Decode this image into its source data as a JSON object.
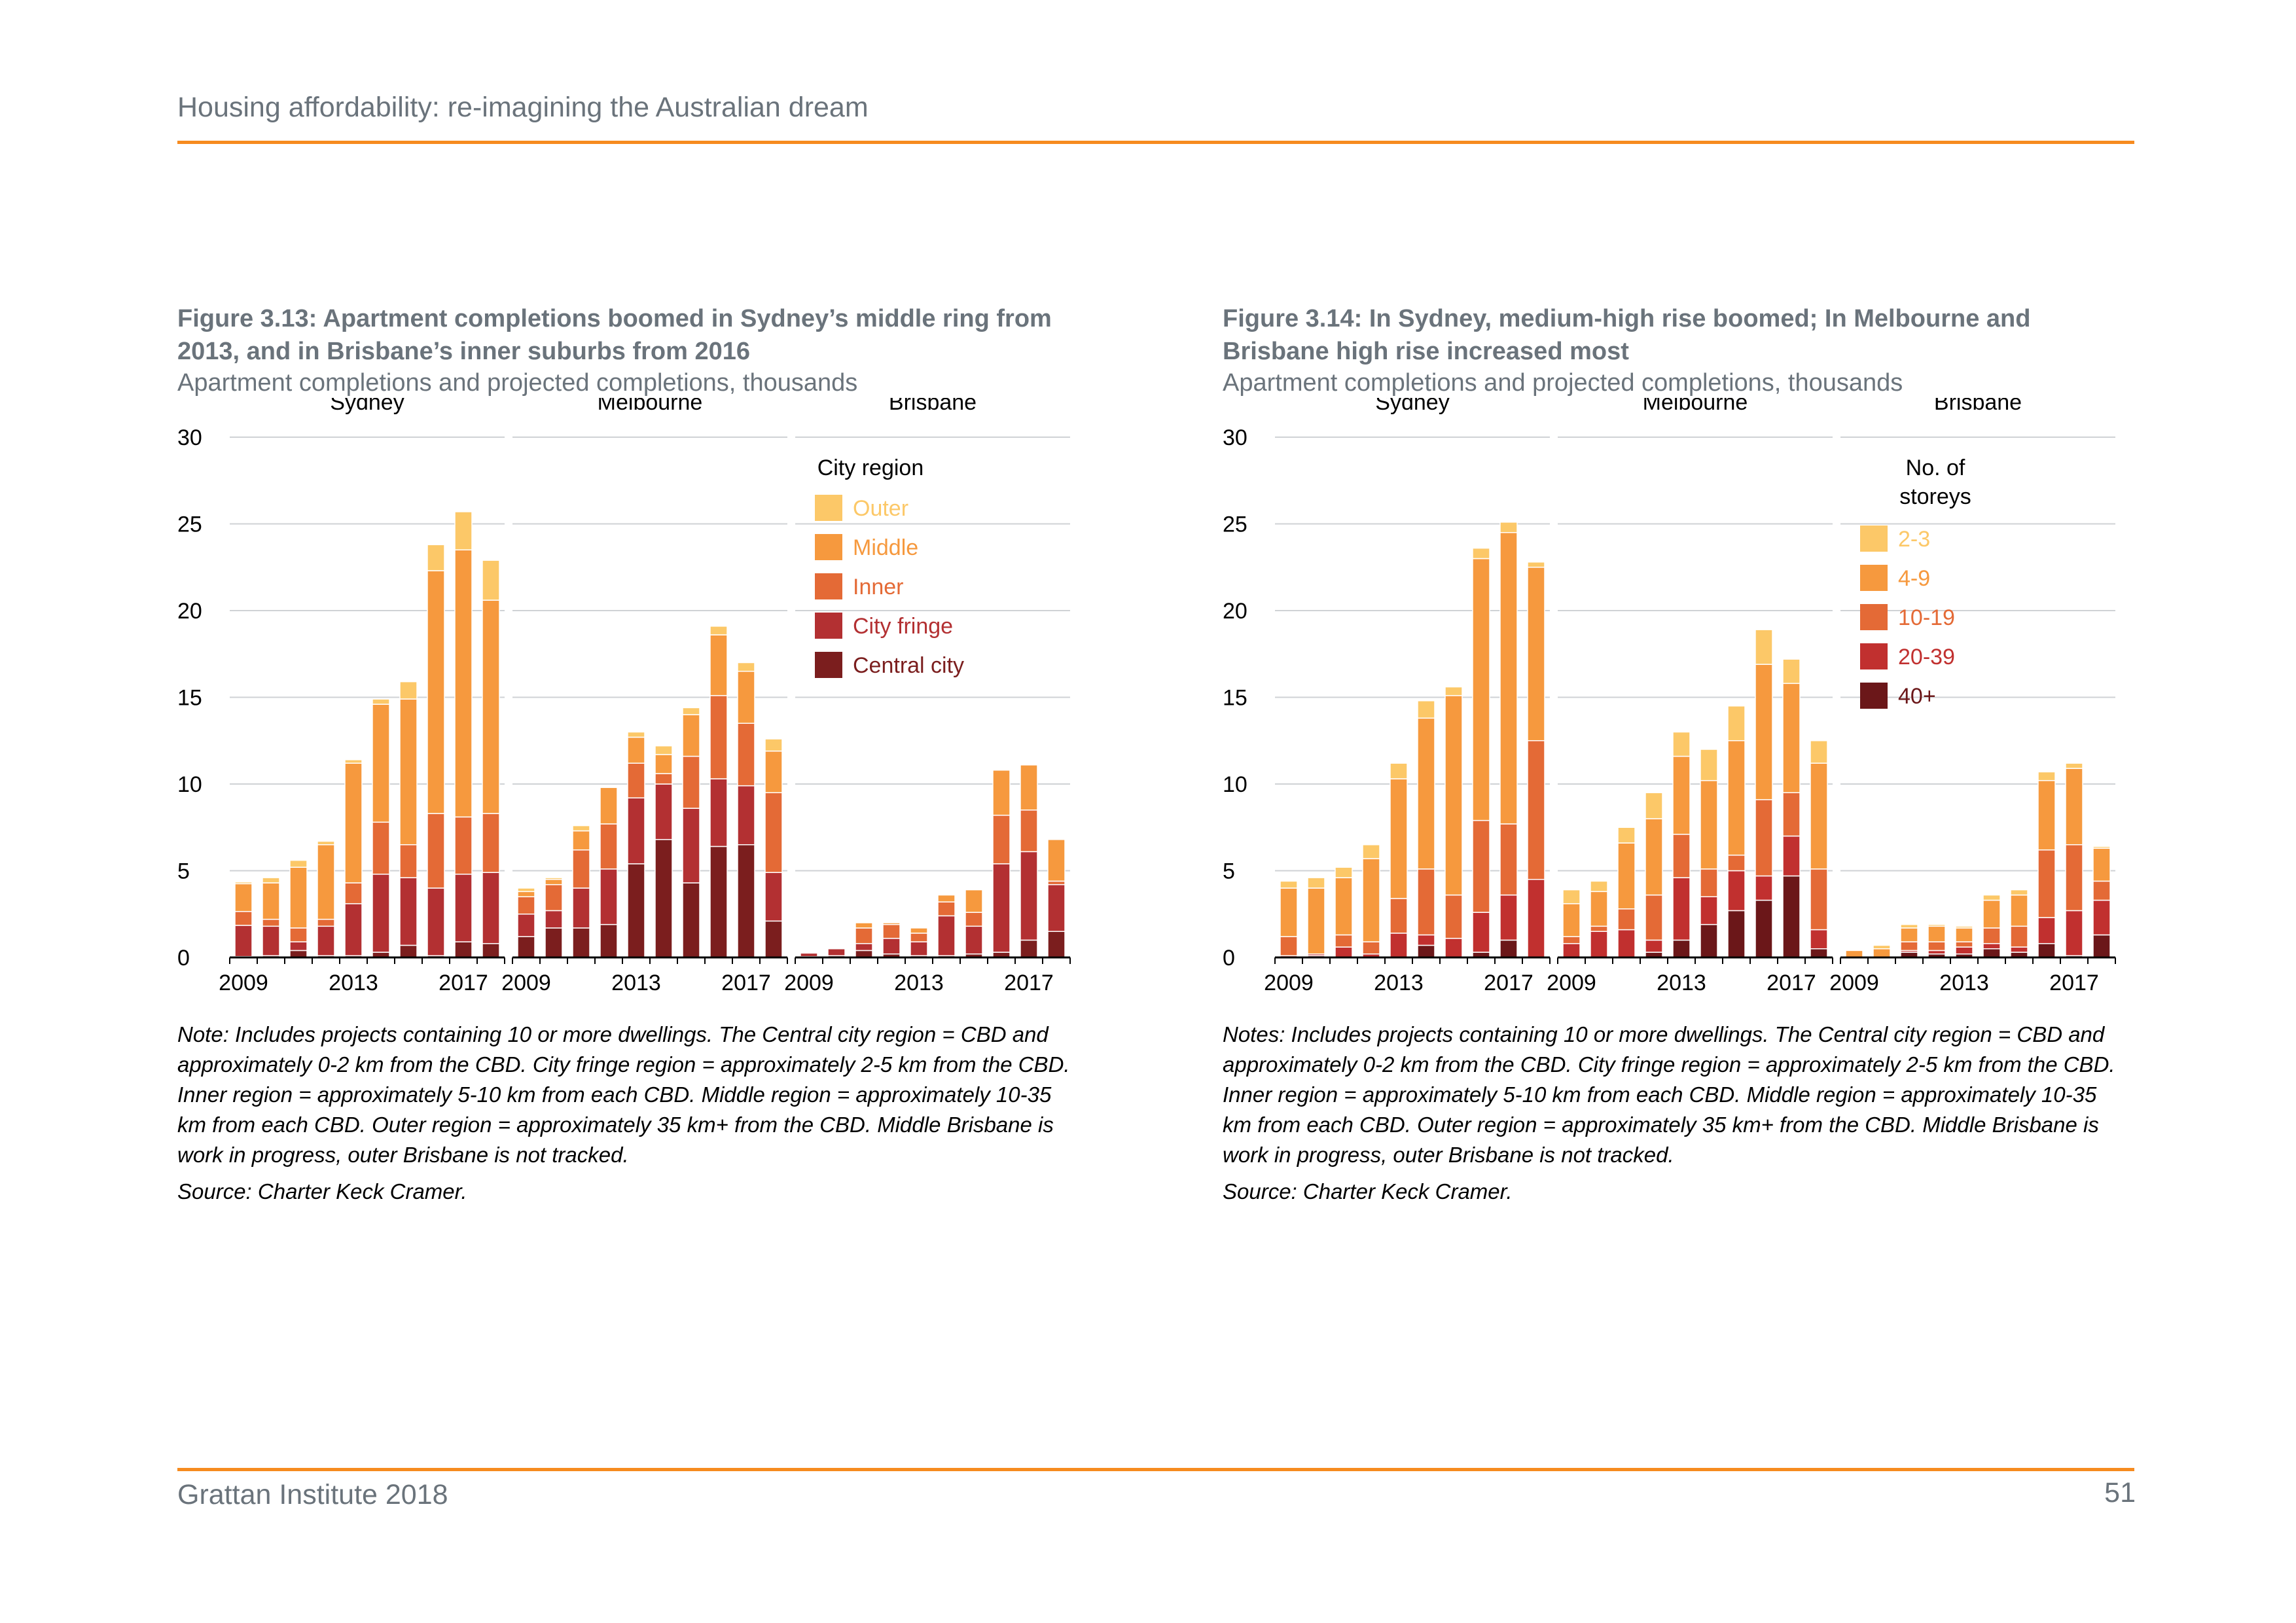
{
  "page": {
    "header": "Housing affordability: re-imagining the Australian dream",
    "footer_left": "Grattan Institute 2018",
    "page_number": "51",
    "accent_color": "#f68b1f"
  },
  "figures": [
    {
      "title": "Figure 3.13: Apartment completions boomed in Sydney’s middle ring from 2013, and in Brisbane’s inner suburbs from 2016",
      "subtitle": "Apartment completions and projected completions, thousands",
      "note": "Note: Includes projects containing 10 or more dwellings. The Central city region = CBD and approximately 0-2 km from the CBD. City fringe region = approximately 2-5 km from the CBD. Inner region = approximately 5-10 km from each CBD. Middle region = approximately 10-35 km from each CBD. Outer region = approximately 35 km+ from the CBD. Middle Brisbane is work in progress, outer Brisbane is not tracked.",
      "source": "Source: Charter Keck Cramer."
    },
    {
      "title": "Figure 3.14: In Sydney, medium-high rise boomed; In Melbourne and Brisbane high rise increased most",
      "subtitle": "Apartment completions and projected completions, thousands",
      "note": "Notes: Includes projects containing 10 or more dwellings. The Central city region = CBD and approximately 0-2 km from the CBD. City fringe region = approximately 2-5 km from the CBD. Inner region = approximately 5-10 km from each CBD. Middle region = approximately 10-35 km from each CBD. Outer region = approximately 35 km+ from the CBD. Middle Brisbane is work in progress, outer Brisbane is not tracked.",
      "source": "Source: Charter Keck Cramer."
    }
  ],
  "chart_data": [
    {
      "type": "bar",
      "stacked": true,
      "panels": [
        "Sydney",
        "Melbourne",
        "Brisbane"
      ],
      "x": [
        2009,
        2010,
        2011,
        2012,
        2013,
        2014,
        2015,
        2016,
        2017,
        2018
      ],
      "x_tick_labels": [
        "2009",
        "2013",
        "2017"
      ],
      "ylim": [
        0,
        30
      ],
      "y_ticks": [
        0,
        5,
        10,
        15,
        20,
        25,
        30
      ],
      "grid": true,
      "legend_title": "City region",
      "legend_placement": "top-right",
      "series": [
        {
          "name": "Central city",
          "color": "#7b1e1e",
          "Sydney": [
            0.05,
            0.1,
            0.4,
            0.1,
            0.1,
            0.3,
            0.7,
            0.1,
            0.9,
            0.8
          ],
          "Melbourne": [
            1.2,
            1.7,
            1.7,
            1.9,
            5.4,
            6.8,
            4.3,
            6.4,
            6.5,
            2.1
          ],
          "Brisbane": [
            0.05,
            0.1,
            0.4,
            0.2,
            0.1,
            0.1,
            0.2,
            0.3,
            1.0,
            1.5
          ]
        },
        {
          "name": "City fringe",
          "color": "#b33032",
          "Sydney": [
            1.8,
            1.7,
            0.5,
            1.7,
            3.0,
            4.5,
            3.9,
            3.9,
            3.9,
            4.1
          ],
          "Melbourne": [
            1.3,
            1.0,
            2.3,
            3.2,
            3.8,
            3.2,
            4.3,
            3.9,
            3.4,
            2.8
          ],
          "Brisbane": [
            0.2,
            0.4,
            0.4,
            0.9,
            0.8,
            2.3,
            1.6,
            5.1,
            5.1,
            2.7
          ]
        },
        {
          "name": "Inner",
          "color": "#e46a36",
          "Sydney": [
            0.8,
            0.4,
            0.8,
            0.4,
            1.2,
            3.0,
            1.9,
            4.3,
            3.3,
            3.4
          ],
          "Melbourne": [
            1.0,
            1.5,
            2.2,
            2.6,
            2.0,
            0.6,
            3.0,
            4.8,
            3.6,
            4.6
          ],
          "Brisbane": [
            0.0,
            0.0,
            0.9,
            0.8,
            0.5,
            0.8,
            0.8,
            2.8,
            2.4,
            0.2
          ]
        },
        {
          "name": "Middle",
          "color": "#f6993e",
          "Sydney": [
            1.6,
            2.1,
            3.5,
            4.3,
            6.9,
            6.8,
            8.4,
            14.0,
            15.4,
            12.3
          ],
          "Melbourne": [
            0.3,
            0.3,
            1.1,
            2.1,
            1.5,
            1.1,
            2.4,
            3.5,
            3.0,
            2.4
          ],
          "Brisbane": [
            0.0,
            0.0,
            0.3,
            0.1,
            0.3,
            0.4,
            1.3,
            2.6,
            2.6,
            2.4
          ]
        },
        {
          "name": "Outer",
          "color": "#fcc868",
          "Sydney": [
            0.1,
            0.3,
            0.4,
            0.2,
            0.2,
            0.3,
            1.0,
            1.5,
            2.2,
            2.3
          ],
          "Melbourne": [
            0.2,
            0.1,
            0.3,
            0.0,
            0.3,
            0.5,
            0.4,
            0.5,
            0.5,
            0.7
          ],
          "Brisbane": [
            0.0,
            0.0,
            0.0,
            0.0,
            0.0,
            0.0,
            0.0,
            0.0,
            0.0,
            0.0
          ]
        }
      ]
    },
    {
      "type": "bar",
      "stacked": true,
      "panels": [
        "Sydney",
        "Melbourne",
        "Brisbane"
      ],
      "x": [
        2009,
        2010,
        2011,
        2012,
        2013,
        2014,
        2015,
        2016,
        2017,
        2018
      ],
      "x_tick_labels": [
        "2009",
        "2013",
        "2017"
      ],
      "ylim": [
        0,
        30
      ],
      "y_ticks": [
        0,
        5,
        10,
        15,
        20,
        25,
        30
      ],
      "grid": true,
      "legend_title": "No. of storeys",
      "legend_placement": "top-right",
      "series": [
        {
          "name": "40+",
          "color": "#6b1719",
          "Sydney": [
            0.0,
            0.1,
            0.0,
            0.0,
            0.0,
            0.7,
            0.0,
            0.3,
            1.0,
            0.0
          ],
          "Melbourne": [
            0.0,
            0.0,
            0.0,
            0.3,
            1.0,
            1.9,
            2.7,
            3.3,
            4.7,
            0.5
          ],
          "Brisbane": [
            0.0,
            0.0,
            0.3,
            0.2,
            0.2,
            0.5,
            0.3,
            0.8,
            0.1,
            1.3
          ]
        },
        {
          "name": "20-39",
          "color": "#c1302f",
          "Sydney": [
            0.1,
            0.1,
            0.6,
            0.2,
            1.4,
            0.6,
            1.1,
            2.3,
            2.6,
            4.5
          ],
          "Melbourne": [
            0.8,
            1.5,
            1.6,
            0.7,
            3.6,
            1.6,
            2.3,
            1.4,
            2.3,
            1.1
          ],
          "Brisbane": [
            0.0,
            0.0,
            0.1,
            0.2,
            0.4,
            0.3,
            0.3,
            1.5,
            2.6,
            2.0
          ]
        },
        {
          "name": "10-19",
          "color": "#e46a36",
          "Sydney": [
            1.1,
            0.0,
            0.7,
            0.7,
            2.0,
            3.8,
            2.5,
            5.3,
            4.1,
            8.0
          ],
          "Melbourne": [
            0.4,
            0.3,
            1.2,
            2.6,
            2.5,
            1.6,
            0.9,
            4.4,
            2.5,
            3.5
          ],
          "Brisbane": [
            0.0,
            0.0,
            0.5,
            0.5,
            0.3,
            0.9,
            1.2,
            3.9,
            3.8,
            1.1
          ]
        },
        {
          "name": "4-9",
          "color": "#f6993e",
          "Sydney": [
            2.8,
            3.8,
            3.3,
            4.8,
            6.9,
            8.7,
            11.5,
            15.1,
            16.8,
            10.0
          ],
          "Melbourne": [
            1.9,
            2.0,
            3.8,
            4.4,
            4.5,
            5.1,
            6.6,
            7.8,
            6.3,
            6.1
          ],
          "Brisbane": [
            0.4,
            0.5,
            0.8,
            0.9,
            0.8,
            1.6,
            1.8,
            4.0,
            4.4,
            1.9
          ]
        },
        {
          "name": "2-3",
          "color": "#fcc868",
          "Sydney": [
            0.4,
            0.6,
            0.6,
            0.8,
            0.9,
            1.0,
            0.5,
            0.6,
            0.6,
            0.3
          ],
          "Melbourne": [
            0.8,
            0.6,
            0.9,
            1.5,
            1.4,
            1.8,
            2.0,
            2.0,
            1.4,
            1.3
          ],
          "Brisbane": [
            0.0,
            0.2,
            0.2,
            0.1,
            0.1,
            0.3,
            0.3,
            0.5,
            0.3,
            0.1
          ]
        }
      ]
    }
  ]
}
